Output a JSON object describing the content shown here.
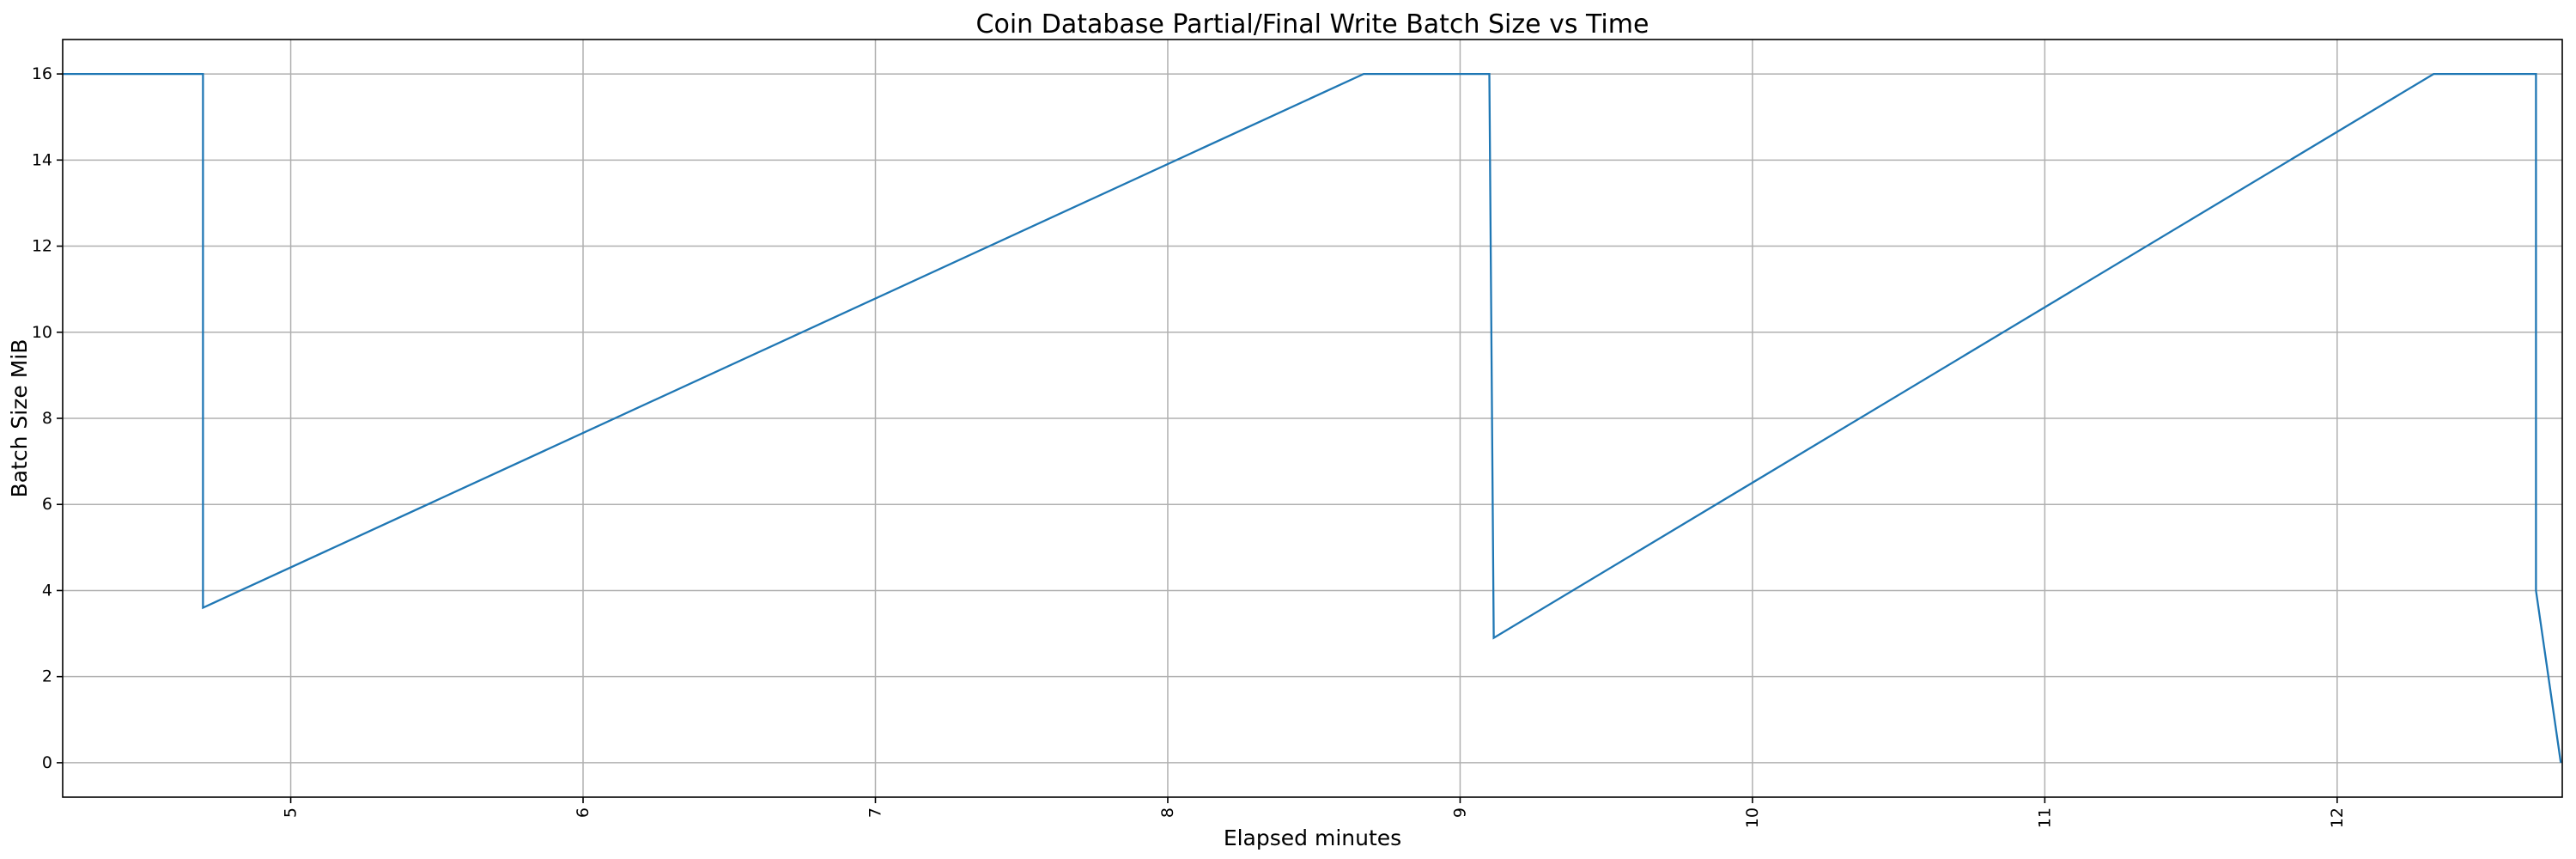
{
  "chart_data": {
    "type": "line",
    "title": "Coin Database Partial/Final Write Batch Size vs Time",
    "xlabel": "Elapsed minutes",
    "ylabel": "Batch Size MiB",
    "xlim": [
      4.22,
      12.77
    ],
    "ylim": [
      -0.8,
      16.8
    ],
    "xticks": [
      5,
      6,
      7,
      8,
      9,
      10,
      11,
      12
    ],
    "yticks": [
      0,
      2,
      4,
      6,
      8,
      10,
      12,
      14,
      16
    ],
    "xtick_rotation": 90,
    "grid": true,
    "series": [
      {
        "color": "#1f77b4",
        "x": [
          4.22,
          4.7,
          4.7,
          8.67,
          9.1,
          9.115,
          12.33,
          12.68,
          12.68,
          12.765
        ],
        "y": [
          16,
          16,
          3.6,
          16,
          16,
          2.9,
          16,
          16,
          4.0,
          0
        ]
      }
    ]
  }
}
